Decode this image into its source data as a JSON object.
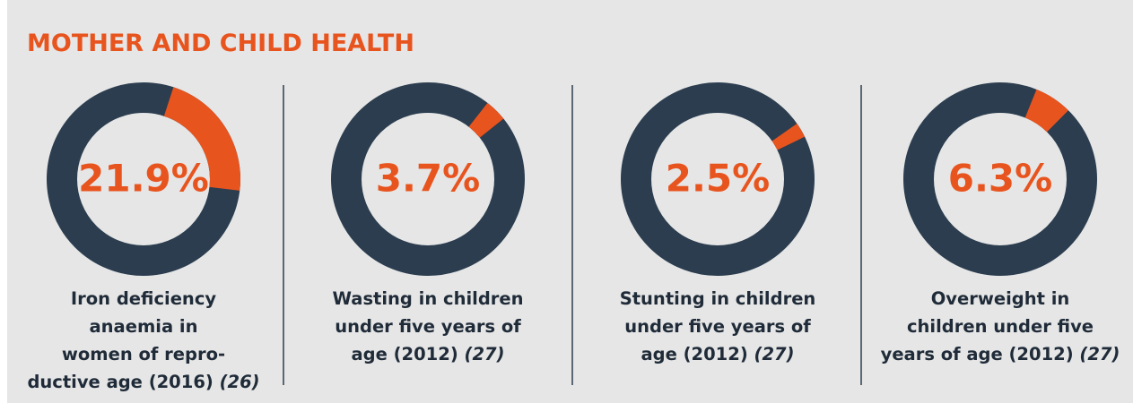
{
  "title": "MOTHER AND CHILD HEALTH",
  "chart_data": [
    {
      "type": "donut",
      "values": [
        21.9
      ],
      "value_labels": [
        "21.9%"
      ],
      "color": "#e8541e",
      "track_color": "#2b3d4f",
      "caption": [
        "Iron deficiency",
        "anaemia in",
        "women of repro-",
        "ductive age (2016)"
      ],
      "source": "(26)"
    },
    {
      "type": "donut",
      "values": [
        3.7
      ],
      "value_labels": [
        "3.7%"
      ],
      "color": "#e8541e",
      "track_color": "#2b3d4f",
      "caption": [
        "Wasting in children",
        "under five years of",
        "age (2012)"
      ],
      "source": "(27)"
    },
    {
      "type": "donut",
      "values": [
        2.5
      ],
      "value_labels": [
        "2.5%"
      ],
      "color": "#e8541e",
      "track_color": "#2b3d4f",
      "caption": [
        "Stunting in children",
        "under five years of",
        "age (2012)"
      ],
      "source": "(27)"
    },
    {
      "type": "donut",
      "values": [
        6.3
      ],
      "value_labels": [
        "6.3%"
      ],
      "color": "#e8541e",
      "track_color": "#2b3d4f",
      "caption": [
        "Overweight in",
        "children under five",
        "years of age (2012)"
      ],
      "source": "(27)"
    }
  ]
}
